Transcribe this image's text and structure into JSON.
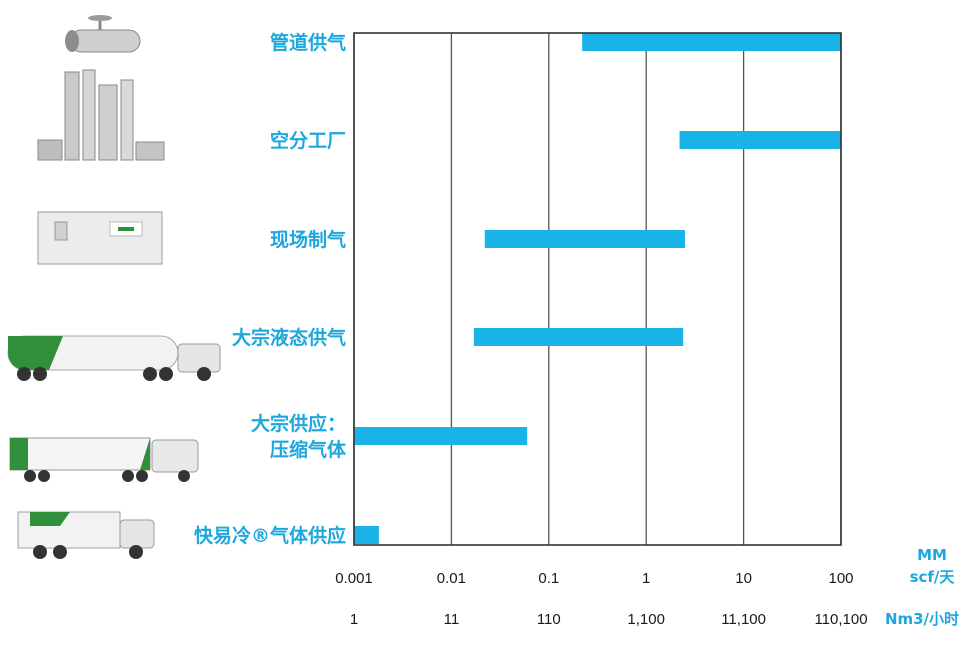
{
  "chart_data": {
    "type": "bar",
    "orientation": "horizontal",
    "scale": "log",
    "bar_color": "#19B3E8",
    "label_color": "#1EA7DC",
    "categories": [
      {
        "lines": [
          "管道供气"
        ],
        "icon": "pipeline-icon"
      },
      {
        "lines": [
          "空分工厂"
        ],
        "icon": "air-separation-plant-icon"
      },
      {
        "lines": [
          "现场制气"
        ],
        "icon": "onsite-container-icon"
      },
      {
        "lines": [
          "大宗液态供气"
        ],
        "icon": "liquid-tanker-truck-icon"
      },
      {
        "lines": [
          "大宗供应：",
          "压缩气体"
        ],
        "icon": "tube-trailer-truck-icon"
      },
      {
        "lines": [
          "快易冷®气体供应"
        ],
        "icon": "small-truck-icon"
      }
    ],
    "ranges": [
      {
        "start": 0.22,
        "end": 100
      },
      {
        "start": 2.2,
        "end": 100
      },
      {
        "start": 0.022,
        "end": 2.5
      },
      {
        "start": 0.017,
        "end": 2.4
      },
      {
        "start": 0.001,
        "end": 0.06
      },
      {
        "start": 0.001,
        "end": 0.0018
      }
    ],
    "x_axis": {
      "min": 0.001,
      "max": 100,
      "ticks": [
        0.001,
        0.01,
        0.1,
        1,
        10,
        100
      ],
      "primary_tick_labels": [
        "0.001",
        "0.01",
        "0.1",
        "1",
        "10",
        "100"
      ],
      "secondary_tick_labels": [
        "1",
        "11",
        "110",
        "1,100",
        "11,100",
        "110,100"
      ],
      "primary_unit": [
        "MM",
        "scf/天"
      ],
      "secondary_unit": "Nm3/小时"
    },
    "grid": true
  }
}
